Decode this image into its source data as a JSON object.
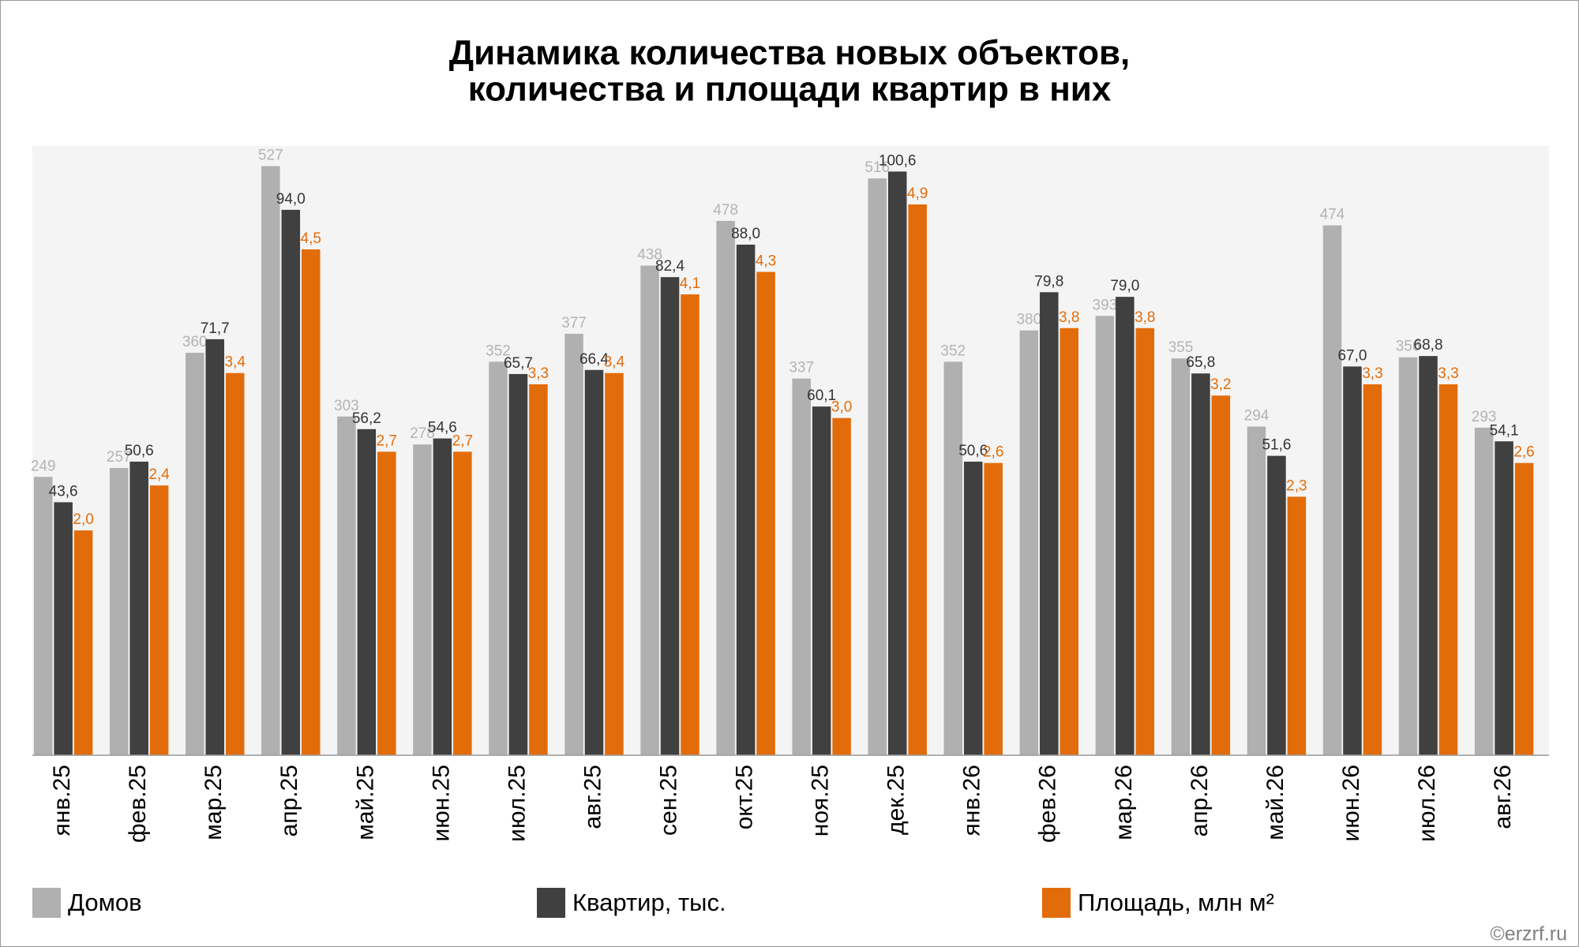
{
  "chart_data": {
    "type": "bar",
    "title": [
      "Динамика количества новых объектов,",
      "количества и площади квартир в них"
    ],
    "categories": [
      "янв.25",
      "фев.25",
      "мар.25",
      "апр.25",
      "май.25",
      "июн.25",
      "июл.25",
      "авг.25",
      "сен.25",
      "окт.25",
      "ноя.25",
      "дек.25",
      "янв.26",
      "фев.26",
      "мар.26",
      "апр.26",
      "май.26",
      "июн.26",
      "июл.26",
      "авг.26"
    ],
    "series": [
      {
        "name": "Домов",
        "color": "#b0b0b0",
        "label_color": "#b3b3b3",
        "ylim": [
          0,
          545
        ],
        "values": [
          249,
          257,
          360,
          527,
          303,
          278,
          352,
          377,
          438,
          478,
          337,
          516,
          352,
          380,
          393,
          355,
          294,
          474,
          356,
          293
        ]
      },
      {
        "name": "Квартир, тыс.",
        "color": "#404040",
        "label_color": "#333333",
        "ylim": [
          0,
          105
        ],
        "values": [
          43.6,
          50.6,
          71.7,
          94.0,
          56.2,
          54.6,
          65.7,
          66.4,
          82.4,
          88.0,
          60.1,
          100.6,
          50.6,
          79.8,
          79.0,
          65.8,
          51.6,
          67.0,
          68.8,
          54.1
        ],
        "value_labels": [
          "43,6",
          "50,6",
          "71,7",
          "94,0",
          "56,2",
          "54,6",
          "65,7",
          "66,4",
          "82,4",
          "88,0",
          "60,1",
          "100,6",
          "50,6",
          "79,8",
          "79,0",
          "65,8",
          "51,6",
          "67,0",
          "68,8",
          "54,1"
        ]
      },
      {
        "name": "Площадь, млн м²",
        "color": "#e36c0a",
        "label_color": "#e36c0a",
        "ylim": [
          0,
          5.42
        ],
        "values": [
          2.0,
          2.4,
          3.4,
          4.5,
          2.7,
          2.7,
          3.3,
          3.4,
          4.1,
          4.3,
          3.0,
          4.9,
          2.6,
          3.8,
          3.8,
          3.2,
          2.3,
          3.3,
          3.3,
          2.6
        ],
        "value_labels": [
          "2,0",
          "2,4",
          "3,4",
          "4,5",
          "2,7",
          "2,7",
          "3,3",
          "3,4",
          "4,1",
          "4,3",
          "3,0",
          "4,9",
          "2,6",
          "3,8",
          "3,8",
          "3,2",
          "2,3",
          "3,3",
          "3,3",
          "2,6"
        ]
      }
    ],
    "watermark": "©erzrf.ru"
  }
}
